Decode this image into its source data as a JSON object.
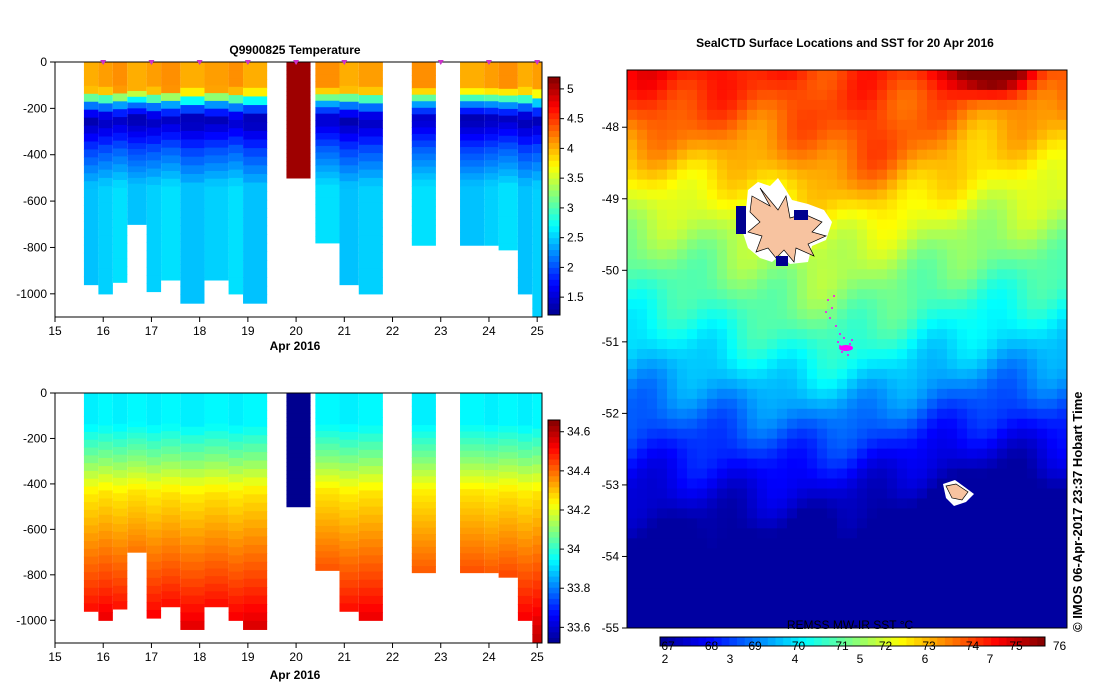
{
  "chart_data": [
    {
      "type": "heatmap",
      "title": "Q9900825  Temperature",
      "x_ticks": [
        "15",
        "16",
        "17",
        "18",
        "19",
        "20",
        "21",
        "22",
        "23",
        "24",
        "25"
      ],
      "xlabel": "Apr 2016",
      "xlim": [
        15,
        25.1
      ],
      "y_ticks": [
        "0",
        "-200",
        "-400",
        "-600",
        "-800",
        "-1000"
      ],
      "ylim": [
        -1100,
        0
      ],
      "colorbar": {
        "ticks": [
          "1.5",
          "2",
          "2.5",
          "3",
          "3.5",
          "4",
          "4.5",
          "5"
        ],
        "range": [
          1.2,
          5.2
        ]
      },
      "profiles": [
        {
          "x": 15.6,
          "bottom": -960
        },
        {
          "x": 15.9,
          "bottom": -1000
        },
        {
          "x": 16.2,
          "bottom": -950
        },
        {
          "x": 16.5,
          "bottom": -700
        },
        {
          "x": 16.9,
          "bottom": -990
        },
        {
          "x": 17.2,
          "bottom": -940
        },
        {
          "x": 17.6,
          "bottom": -1040
        },
        {
          "x": 18.1,
          "bottom": -940
        },
        {
          "x": 18.6,
          "bottom": -1000
        },
        {
          "x": 18.9,
          "bottom": -1040
        },
        {
          "x": 19.8,
          "bottom": -500
        },
        {
          "x": 20.4,
          "bottom": -780
        },
        {
          "x": 20.9,
          "bottom": -960
        },
        {
          "x": 21.3,
          "bottom": -1000
        },
        {
          "x": 22.4,
          "bottom": -790
        },
        {
          "x": 23.4,
          "bottom": -790
        },
        {
          "x": 23.9,
          "bottom": -790
        },
        {
          "x": 24.2,
          "bottom": -810
        },
        {
          "x": 24.6,
          "bottom": -1000
        },
        {
          "x": 24.9,
          "bottom": -1100
        }
      ],
      "marker_x": [
        16,
        17,
        18,
        19,
        20,
        21,
        23,
        24,
        25
      ]
    },
    {
      "type": "heatmap",
      "title": "",
      "x_ticks": [
        "15",
        "16",
        "17",
        "18",
        "19",
        "20",
        "21",
        "22",
        "23",
        "24",
        "25"
      ],
      "xlabel": "Apr 2016",
      "xlim": [
        15,
        25.1
      ],
      "y_ticks": [
        "0",
        "-200",
        "-400",
        "-600",
        "-800",
        "-1000"
      ],
      "ylim": [
        -1100,
        0
      ],
      "colorbar": {
        "ticks": [
          "33.6",
          "33.8",
          "34",
          "34.2",
          "34.4",
          "34.6"
        ],
        "range": [
          33.52,
          34.66
        ]
      },
      "profiles": [
        {
          "x": 15.6,
          "bottom": -960
        },
        {
          "x": 15.9,
          "bottom": -1000
        },
        {
          "x": 16.2,
          "bottom": -950
        },
        {
          "x": 16.5,
          "bottom": -700
        },
        {
          "x": 16.9,
          "bottom": -990
        },
        {
          "x": 17.2,
          "bottom": -940
        },
        {
          "x": 17.6,
          "bottom": -1040
        },
        {
          "x": 18.1,
          "bottom": -940
        },
        {
          "x": 18.6,
          "bottom": -1000
        },
        {
          "x": 18.9,
          "bottom": -1040
        },
        {
          "x": 19.8,
          "bottom": -500
        },
        {
          "x": 20.4,
          "bottom": -780
        },
        {
          "x": 20.9,
          "bottom": -960
        },
        {
          "x": 21.3,
          "bottom": -1000
        },
        {
          "x": 22.4,
          "bottom": -790
        },
        {
          "x": 23.4,
          "bottom": -790
        },
        {
          "x": 23.9,
          "bottom": -790
        },
        {
          "x": 24.2,
          "bottom": -810
        },
        {
          "x": 24.6,
          "bottom": -1000
        },
        {
          "x": 24.9,
          "bottom": -1100
        }
      ]
    },
    {
      "type": "heatmap",
      "title": "SealCTD Surface Locations and SST for 20 Apr 2016",
      "y_ticks": [
        "-48",
        "-49",
        "-50",
        "-51",
        "-52",
        "-53",
        "-54",
        "-55"
      ],
      "ylim": [
        -55,
        -47.2
      ],
      "colorbar_label": "REMSS MW-IR SST °C",
      "colorbar_bottom_ticks": [
        "2",
        "3",
        "4",
        "5",
        "6",
        "7"
      ],
      "colorbar_top_ticks": [
        "67",
        "68",
        "69",
        "70",
        "71",
        "72",
        "73",
        "74",
        "75",
        "76"
      ],
      "credit": "© IMOS 06-Apr-2017 23:37 Hobart Time"
    }
  ],
  "colors": {
    "jet": [
      "#00008f",
      "#0000ff",
      "#0080ff",
      "#00ffff",
      "#80ff80",
      "#ffff00",
      "#ff8000",
      "#ff0000",
      "#800000"
    ]
  }
}
